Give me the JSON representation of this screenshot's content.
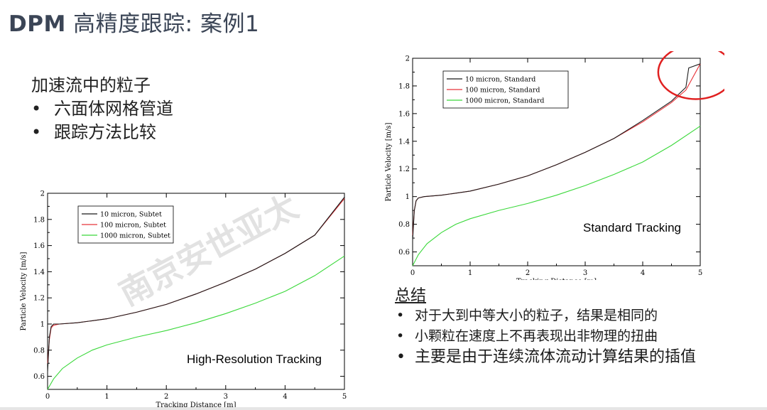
{
  "title": {
    "bold": "DPM",
    "rest": " 高精度跟踪: 案例1"
  },
  "intro": {
    "heading": "加速流中的粒子",
    "bullets": [
      "六面体网格管道",
      "跟踪方法比较"
    ]
  },
  "summary": {
    "heading": "总结",
    "bullets": [
      "对于大到中等大小的粒子，结果是相同的",
      "小颗粒在速度上不再表现出非物理的扭曲",
      "主要是由于连续流体流动计算结果的插值"
    ]
  },
  "watermark": "南京安世亚太",
  "colors": {
    "black": "#1a1a1a",
    "red": "#e8343a",
    "green": "#3ad83a",
    "circle": "#e02020"
  },
  "chart_data": [
    {
      "type": "line",
      "annotation": "High-Resolution Tracking",
      "xlabel": "Tracking Distance [m]",
      "ylabel": "Particle Velocity [m/s]",
      "xlim": [
        0,
        5
      ],
      "ylim": [
        0.5,
        2
      ],
      "xticks": [
        "0",
        "1",
        "2",
        "3",
        "4",
        "5"
      ],
      "yticks": [
        "0.6",
        "0.8",
        "1",
        "1.2",
        "1.4",
        "1.6",
        "1.8",
        "2"
      ],
      "legend_position": "top-left",
      "series": [
        {
          "name": "10 micron, Subtet",
          "color": "black",
          "x": [
            0,
            0.03,
            0.06,
            0.1,
            0.2,
            0.5,
            1,
            1.5,
            2,
            2.5,
            3,
            3.5,
            4,
            4.5,
            5
          ],
          "y": [
            0.63,
            0.9,
            0.98,
            1.0,
            1.0,
            1.01,
            1.04,
            1.09,
            1.15,
            1.23,
            1.32,
            1.42,
            1.54,
            1.68,
            1.97
          ]
        },
        {
          "name": "100 micron, Subtet",
          "color": "red",
          "x": [
            0,
            0.03,
            0.06,
            0.1,
            0.2,
            0.5,
            1,
            1.5,
            2,
            2.5,
            3,
            3.5,
            4,
            4.5,
            5
          ],
          "y": [
            0.7,
            0.88,
            0.97,
            0.99,
            1.0,
            1.01,
            1.04,
            1.09,
            1.15,
            1.23,
            1.32,
            1.42,
            1.54,
            1.68,
            1.96
          ]
        },
        {
          "name": "1000 micron, Subtet",
          "color": "green",
          "x": [
            0,
            0.1,
            0.25,
            0.5,
            0.75,
            1,
            1.5,
            2,
            2.5,
            3,
            3.5,
            4,
            4.5,
            5
          ],
          "y": [
            0.5,
            0.58,
            0.66,
            0.74,
            0.8,
            0.84,
            0.9,
            0.95,
            1.01,
            1.08,
            1.16,
            1.25,
            1.37,
            1.52
          ]
        }
      ]
    },
    {
      "type": "line",
      "annotation": "Standard Tracking",
      "xlabel": "Tracking Distance [m]",
      "ylabel": "Particle Velocity [m/s]",
      "xlim": [
        0,
        5
      ],
      "ylim": [
        0.5,
        2
      ],
      "xticks": [
        "0",
        "1",
        "2",
        "3",
        "4",
        "5"
      ],
      "yticks": [
        "0.6",
        "0.8",
        "1",
        "1.2",
        "1.4",
        "1.6",
        "1.8",
        "2"
      ],
      "legend_position": "top-left",
      "highlight": "red ellipse around x 4.5–5, y 1.75–2",
      "series": [
        {
          "name": "10 micron, Standard",
          "color": "black",
          "x": [
            0,
            0.03,
            0.06,
            0.1,
            0.2,
            0.5,
            1,
            1.5,
            2,
            2.5,
            3,
            3.5,
            4,
            4.5,
            4.75,
            4.8,
            5
          ],
          "y": [
            0.68,
            0.9,
            0.97,
            0.99,
            1.0,
            1.01,
            1.04,
            1.09,
            1.15,
            1.23,
            1.32,
            1.42,
            1.55,
            1.69,
            1.79,
            1.93,
            1.96
          ]
        },
        {
          "name": "100 micron, Standard",
          "color": "red",
          "x": [
            0,
            0.03,
            0.06,
            0.1,
            0.2,
            0.5,
            1,
            1.5,
            2,
            2.5,
            3,
            3.5,
            4,
            4.5,
            4.75,
            5
          ],
          "y": [
            0.72,
            0.9,
            0.97,
            0.99,
            1.0,
            1.01,
            1.04,
            1.09,
            1.15,
            1.23,
            1.32,
            1.42,
            1.54,
            1.68,
            1.77,
            1.96
          ]
        },
        {
          "name": "1000 micron, Standard",
          "color": "green",
          "x": [
            0,
            0.1,
            0.25,
            0.5,
            0.75,
            1,
            1.5,
            2,
            2.5,
            3,
            3.5,
            4,
            4.5,
            5
          ],
          "y": [
            0.5,
            0.58,
            0.66,
            0.74,
            0.8,
            0.84,
            0.9,
            0.95,
            1.01,
            1.08,
            1.16,
            1.25,
            1.37,
            1.51
          ]
        }
      ]
    }
  ]
}
